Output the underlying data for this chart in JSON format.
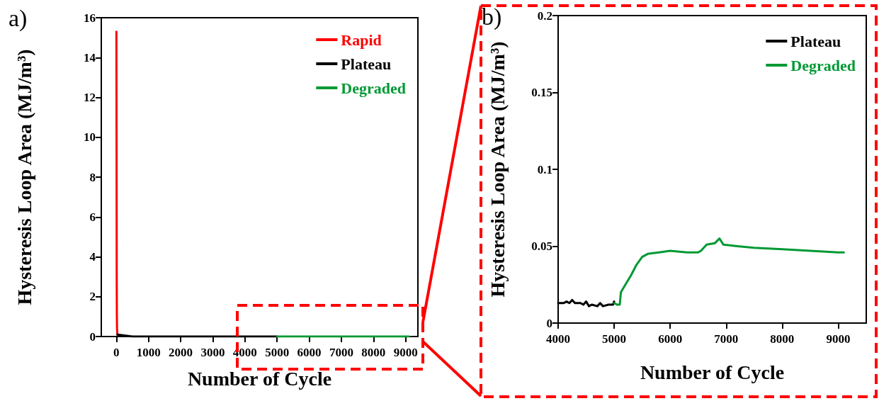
{
  "chart_data": [
    {
      "type": "line",
      "xlabel": "Number of Cycle",
      "ylabel": "Hysteresis Loop Area (MJ/m³)",
      "annotations": [
        "a)"
      ],
      "xlim": [
        -470,
        9380
      ],
      "xticks": [
        0,
        1000,
        2000,
        3000,
        4000,
        5000,
        6000,
        7000,
        8000,
        9000
      ],
      "ylim": [
        0,
        16
      ],
      "yticks": [
        0,
        2,
        4,
        6,
        8,
        10,
        12,
        14,
        16
      ],
      "grid": false,
      "legend": "top right",
      "marker": "none",
      "line_style": "solid",
      "series": [
        {
          "name": "Rapid",
          "color": "#ff0000",
          "x": [
            0,
            5,
            10,
            15,
            20,
            30
          ],
          "values": [
            15.3,
            10,
            3,
            1,
            0.4,
            0.1
          ]
        },
        {
          "name": "Plateau",
          "color": "#000000",
          "x": [
            30,
            500,
            5000
          ],
          "values": [
            0.1,
            0,
            0
          ]
        },
        {
          "name": "Degraded",
          "color": "#009933",
          "x": [
            5000,
            9100
          ],
          "values": [
            0,
            0
          ]
        }
      ]
    },
    {
      "type": "line",
      "xlabel": "Number of Cycle",
      "ylabel": "Hysteresis Loop Area (MJ/m³)",
      "annotations": [
        "b)"
      ],
      "xlim": [
        4000,
        9500
      ],
      "xticks": [
        4000,
        5000,
        6000,
        7000,
        8000,
        9000
      ],
      "ylim": [
        0,
        0.2
      ],
      "yticks": [
        0,
        0.05,
        0.1,
        0.15,
        0.2
      ],
      "grid": false,
      "legend": "top right",
      "marker": "none",
      "line_style": "solid",
      "series": [
        {
          "name": "Plateau",
          "color": "#000000",
          "x": [
            4000,
            4100,
            4150,
            4200,
            4250,
            4300,
            4400,
            4450,
            4500,
            4550,
            4600,
            4700,
            4750,
            4800,
            4900,
            4980,
            5000
          ],
          "values": [
            0.013,
            0.013,
            0.014,
            0.013,
            0.015,
            0.013,
            0.013,
            0.012,
            0.014,
            0.011,
            0.012,
            0.011,
            0.013,
            0.011,
            0.012,
            0.012,
            0.014
          ]
        },
        {
          "name": "Degraded",
          "color": "#009933",
          "x": [
            5000,
            5050,
            5100,
            5120,
            5200,
            5300,
            5400,
            5500,
            5600,
            5800,
            6000,
            6300,
            6500,
            6550,
            6650,
            6800,
            6880,
            6950,
            7200,
            7500,
            8000,
            8500,
            9000,
            9100
          ],
          "values": [
            0.013,
            0.012,
            0.012,
            0.02,
            0.025,
            0.031,
            0.038,
            0.043,
            0.045,
            0.046,
            0.047,
            0.046,
            0.046,
            0.047,
            0.051,
            0.052,
            0.055,
            0.051,
            0.05,
            0.049,
            0.048,
            0.047,
            0.046,
            0.046
          ]
        }
      ]
    }
  ]
}
